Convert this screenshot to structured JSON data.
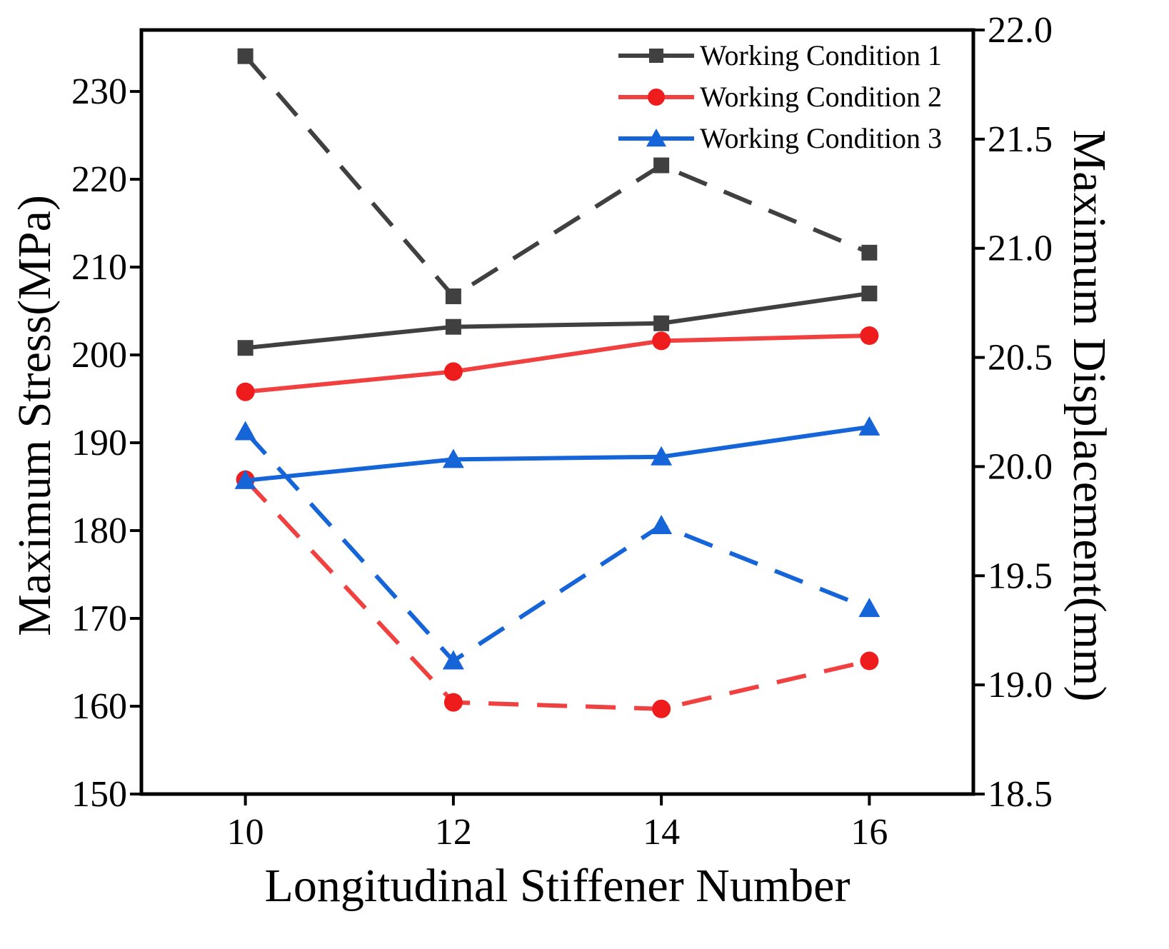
{
  "chart_data": {
    "type": "line",
    "title": "",
    "xlabel": "Longitudinal Stiffener Number",
    "ylabel_left": "Maximum Stress(MPa)",
    "ylabel_right": "Maximum Displacement(mm)",
    "x": [
      10,
      12,
      14,
      16
    ],
    "x_ticks": [
      "10",
      "12",
      "14",
      "16"
    ],
    "xlim": [
      9,
      17
    ],
    "ylim_left": [
      150,
      237
    ],
    "ylim_right": [
      18.5,
      22.0
    ],
    "y_ticks_left": [
      "150",
      "160",
      "170",
      "180",
      "190",
      "200",
      "210",
      "220",
      "230"
    ],
    "y_ticks_right": [
      "18.5",
      "19.0",
      "19.5",
      "20.0",
      "20.5",
      "21.0",
      "21.5",
      "22.0"
    ],
    "legend_position": "top-right",
    "series": [
      {
        "name": "Working Condition 1",
        "color": "#404040",
        "marker": "square",
        "stress": [
          200.8,
          203.2,
          203.6,
          207.0
        ],
        "displacement": [
          21.88,
          20.78,
          21.38,
          20.98
        ]
      },
      {
        "name": "Working Condition 2",
        "color": "#f04040",
        "marker": "circle",
        "stress": [
          195.8,
          198.1,
          201.6,
          202.2
        ],
        "displacement": [
          19.94,
          18.92,
          18.89,
          19.11
        ]
      },
      {
        "name": "Working Condition 3",
        "color": "#1565d8",
        "marker": "triangle",
        "stress": [
          185.7,
          188.1,
          188.4,
          191.8
        ],
        "displacement": [
          20.16,
          19.11,
          19.73,
          19.35
        ]
      }
    ]
  }
}
